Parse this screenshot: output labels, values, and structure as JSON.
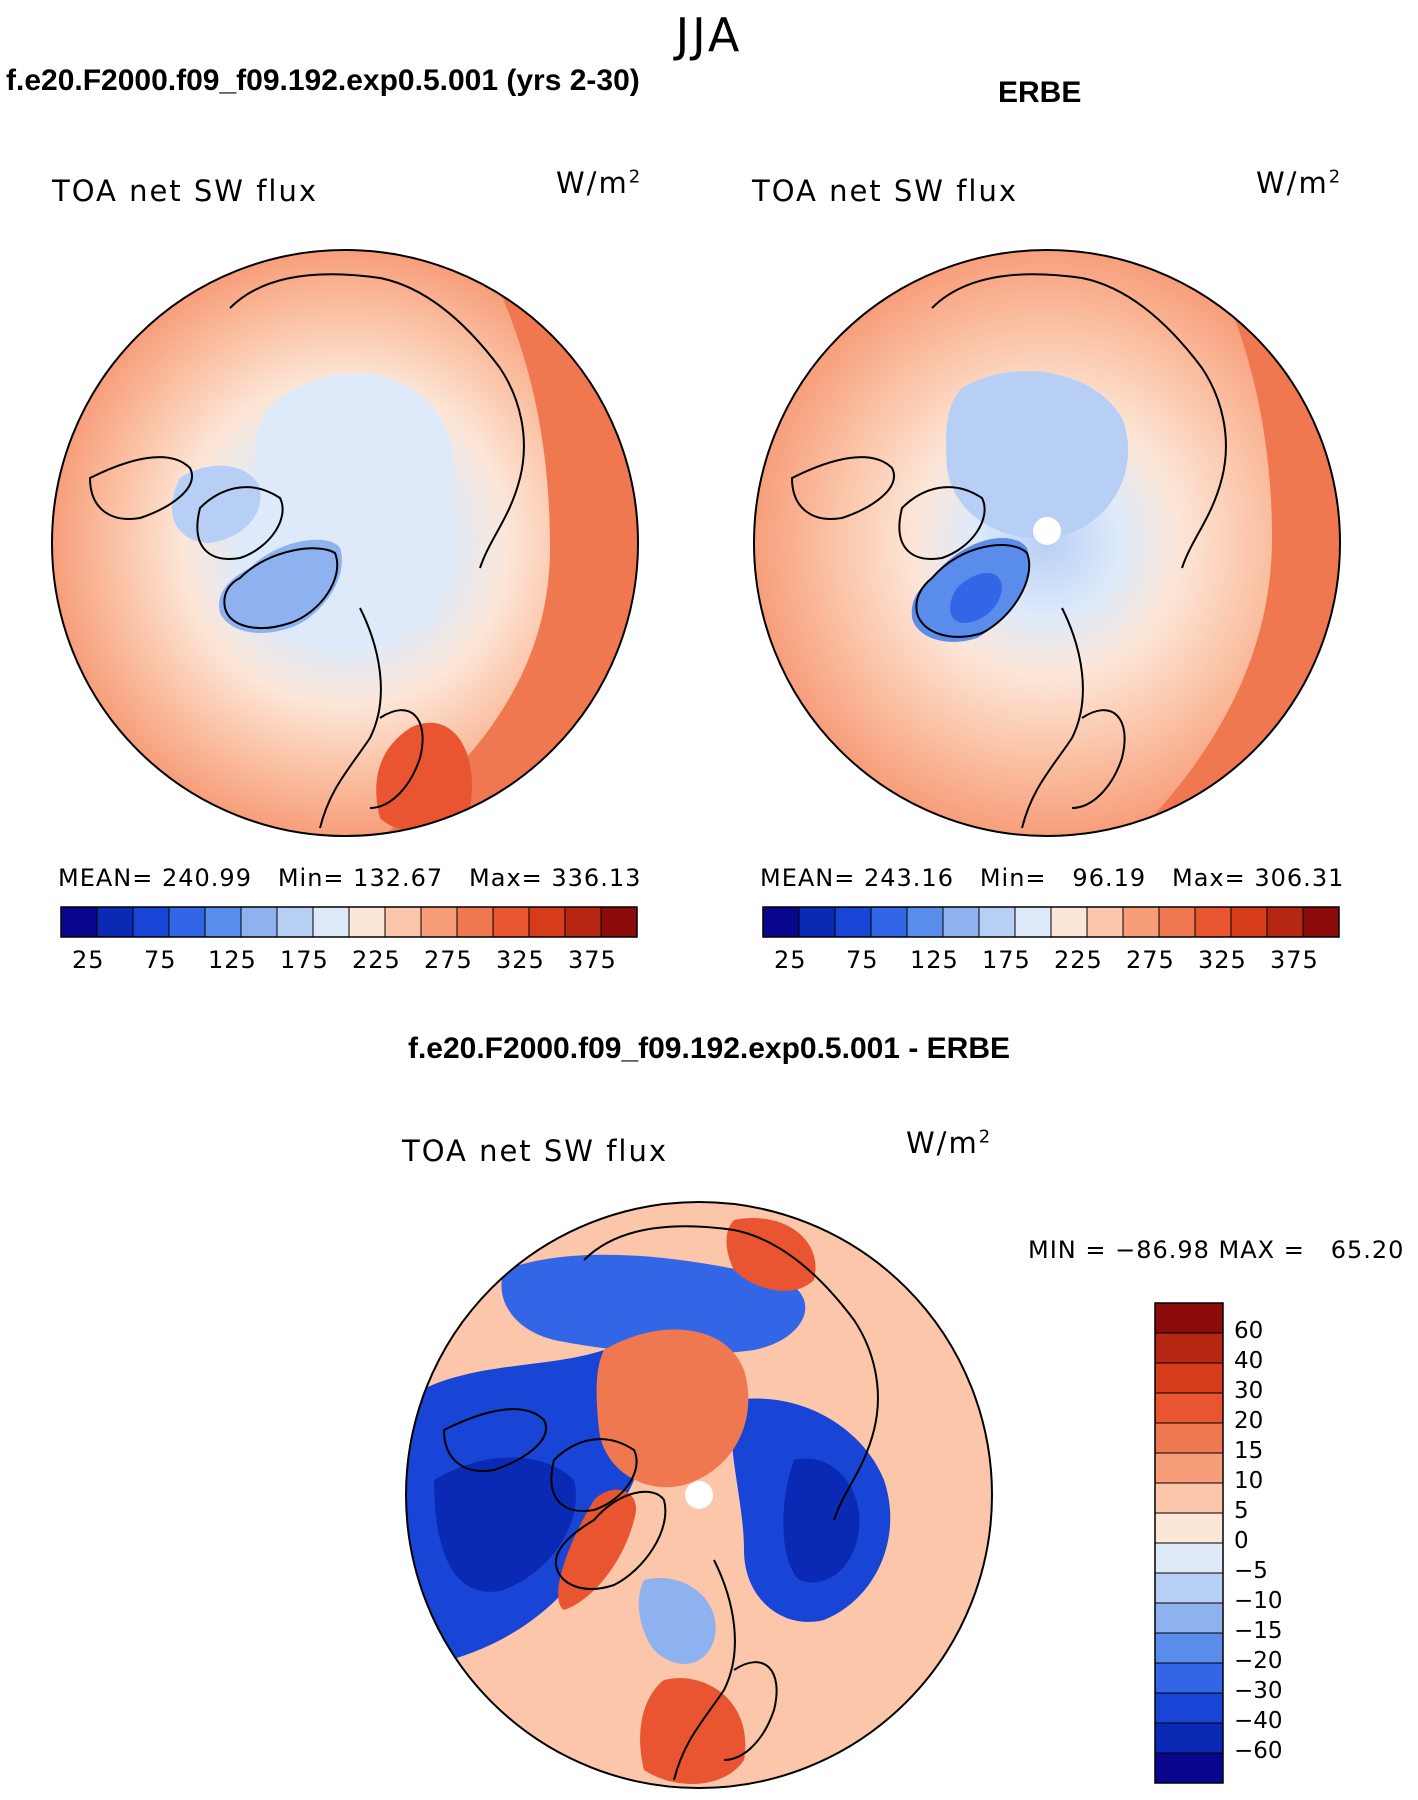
{
  "season": "JJA",
  "panels": [
    {
      "header": "f.e20.F2000.f09_f09.192.exp0.5.001 (yrs 2-30)",
      "title": "TOA net SW flux",
      "units_base": "W/m",
      "units_exp": "2",
      "stats": "MEAN= 240.99   Min= 132.67   Max= 336.13",
      "colorbar_ticks": [
        "25",
        "75",
        "125",
        "175",
        "225",
        "275",
        "325",
        "375"
      ]
    },
    {
      "header": "ERBE",
      "title": "TOA net SW flux",
      "units_base": "W/m",
      "units_exp": "2",
      "stats": "MEAN= 243.16   Min=   96.19   Max= 306.31",
      "colorbar_ticks": [
        "25",
        "75",
        "125",
        "175",
        "225",
        "275",
        "325",
        "375"
      ]
    }
  ],
  "diff": {
    "header": "f.e20.F2000.f09_f09.192.exp0.5.001 - ERBE",
    "title": "TOA net SW flux",
    "units_base": "W/m",
    "units_exp": "2",
    "stats": "MIN = −86.98 MAX =   65.20",
    "colorbar_labels": [
      "60",
      "40",
      "30",
      "20",
      "15",
      "10",
      "5",
      "0",
      "−5",
      "−10",
      "−15",
      "−20",
      "−30",
      "−40",
      "−60"
    ]
  },
  "colors": {
    "seq": [
      "#08068c",
      "#0a2ab5",
      "#1845d6",
      "#3366e6",
      "#5a8ceb",
      "#8eb2f0",
      "#b8cff5",
      "#deeafa",
      "#fce6d8",
      "#fbc6aa",
      "#f79d79",
      "#f07850",
      "#e85530",
      "#d63c1c",
      "#b52712",
      "#8b0a0a"
    ],
    "div": [
      "#8b0a0a",
      "#b52712",
      "#d63c1c",
      "#e85530",
      "#f07850",
      "#f79d79",
      "#fbc6aa",
      "#fce6d8",
      "#deeafa",
      "#b8cff5",
      "#8eb2f0",
      "#5a8ceb",
      "#3366e6",
      "#1845d6",
      "#0a2ab5",
      "#08068c"
    ],
    "land_line": "#000000"
  }
}
